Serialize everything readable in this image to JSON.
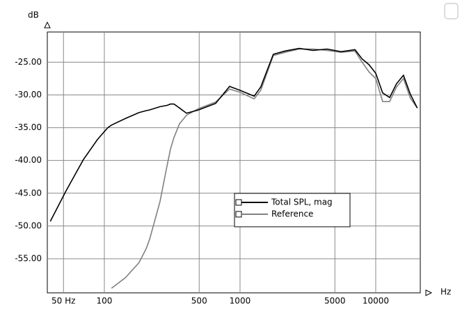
{
  "chart_data": {
    "type": "line",
    "y_axis_label": "dB",
    "x_axis_label": "Hz",
    "log_x": true,
    "grid": true,
    "legend_position": "center-right",
    "xlim": [
      38,
      21300
    ],
    "ylim": [
      -60.2,
      -20.4
    ],
    "xticks": [
      {
        "value": 50,
        "label": "50 Hz"
      },
      100,
      500,
      1000,
      5000,
      10000
    ],
    "yticks": [
      {
        "value": -25,
        "label": "-25.00"
      },
      {
        "value": -30,
        "label": "-30.00"
      },
      {
        "value": -35,
        "label": "-35.00"
      },
      {
        "value": -40,
        "label": "-40.00"
      },
      {
        "value": -45,
        "label": "-45.00"
      },
      {
        "value": -50,
        "label": "-50.00"
      },
      {
        "value": -55,
        "label": "-55.00"
      }
    ],
    "x": [
      40,
      52,
      70,
      89,
      106,
      113,
      143,
      180,
      203,
      215,
      257,
      290,
      307,
      326,
      358,
      403,
      493,
      660,
      837,
      1000,
      1270,
      1420,
      1760,
      2150,
      2730,
      3460,
      4380,
      5550,
      7030,
      7930,
      8930,
      10000,
      11250,
      12670,
      14230,
      16000,
      18000,
      20250
    ],
    "series": [
      {
        "name": "Total SPL, mag",
        "color": "#000000",
        "values": [
          -49.3,
          -44.7,
          -39.9,
          -36.8,
          -35.0,
          -34.6,
          -33.6,
          -32.7,
          -32.4,
          -32.3,
          -31.8,
          -31.6,
          -31.4,
          -31.4,
          -32.0,
          -32.8,
          -32.3,
          -31.3,
          -28.7,
          -29.3,
          -30.2,
          -28.8,
          -23.8,
          -23.3,
          -22.9,
          -23.2,
          -23.0,
          -23.4,
          -23.1,
          -24.5,
          -25.4,
          -26.7,
          -29.7,
          -30.4,
          -28.3,
          -27.0,
          -29.9,
          -32.0
        ]
      },
      {
        "name": "Reference",
        "color": "#808080",
        "values": [
          null,
          null,
          null,
          null,
          null,
          -59.5,
          -57.9,
          -55.6,
          -53.5,
          -52.1,
          -46.3,
          -40.8,
          -38.3,
          -36.5,
          -34.4,
          -33.1,
          -32.1,
          -31.1,
          -29.1,
          -29.6,
          -30.6,
          -29.3,
          -24.0,
          -23.5,
          -23.0,
          -23.0,
          -23.2,
          -23.5,
          -23.3,
          -25.0,
          -26.5,
          -27.5,
          -31.0,
          -31.0,
          -28.8,
          -27.5,
          -30.5,
          -32.0
        ]
      }
    ]
  }
}
